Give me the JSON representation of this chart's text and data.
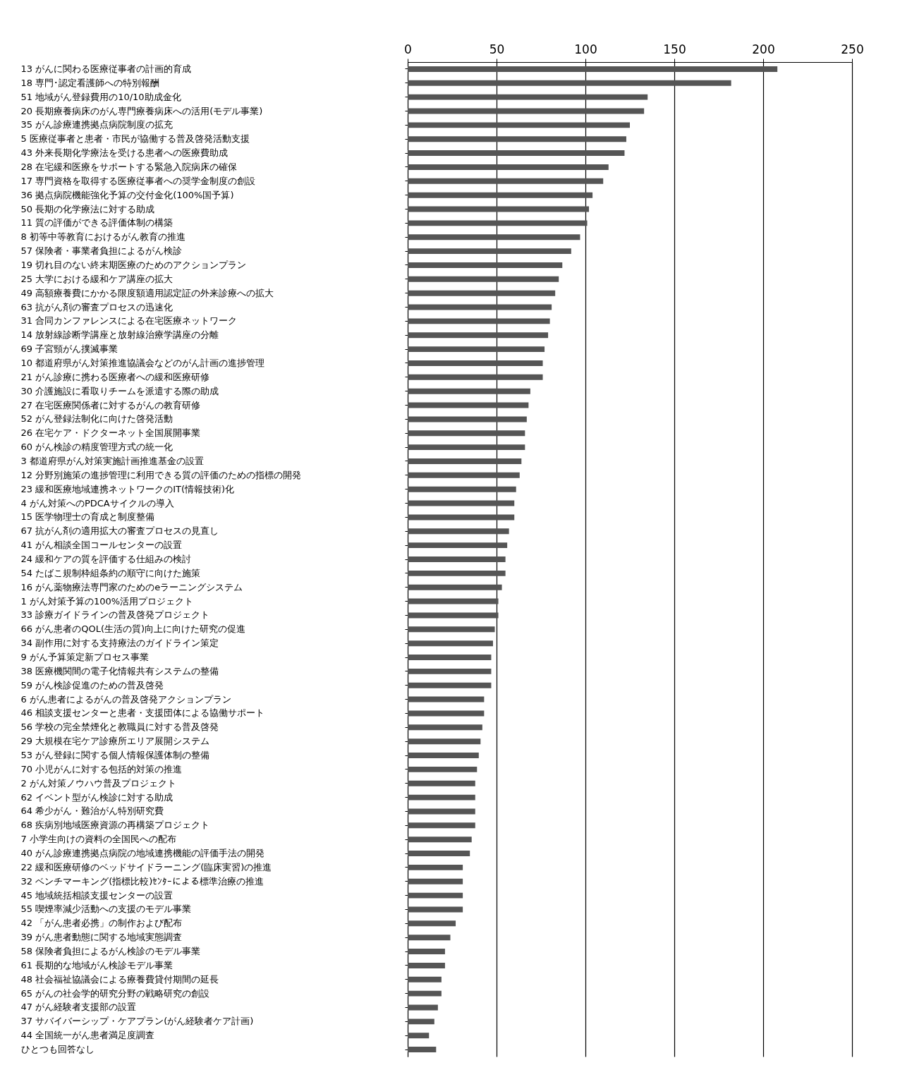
{
  "chart_data": {
    "type": "bar",
    "orientation": "horizontal",
    "grid": "x",
    "x2lim": [
      0,
      250
    ],
    "x2ticks": [
      0,
      50,
      100,
      150,
      200,
      250
    ],
    "categories": [
      "13  がんに関わる医療従事者の計画的育成",
      "18  専門･認定看護師への特別報酬",
      "51  地域がん登録費用の10/10助成金化",
      "20  長期療養病床のがん専門療養病床への活用(モデル事業)",
      "35  がん診療連携拠点病院制度の拡充",
      " 5  医療従事者と患者・市民が協働する普及啓発活動支援",
      "43  外来長期化学療法を受ける患者への医療費助成",
      "28  在宅緩和医療をサポートする緊急入院病床の確保",
      "17  専門資格を取得する医療従事者への奨学金制度の創設",
      "36  拠点病院機能強化予算の交付金化(100%国予算)",
      "50  長期の化学療法に対する助成",
      "11  質の評価ができる評価体制の構築",
      " 8  初等中等教育におけるがん教育の推進",
      "57  保険者・事業者負担によるがん検診",
      "19  切れ目のない終末期医療のためのアクションプラン",
      "25  大学における緩和ケア講座の拡大",
      "49  高額療養費にかかる限度額適用認定証の外来診療への拡大",
      "63  抗がん剤の審査プロセスの迅速化",
      "31  合同カンファレンスによる在宅医療ネットワーク",
      "14  放射線診断学講座と放射線治療学講座の分離",
      "69  子宮頸がん撲滅事業",
      "10  都道府県がん対策推進協議会などのがん計画の進捗管理",
      "21  がん診療に携わる医療者への緩和医療研修",
      "30  介護施設に看取りチームを派遣する際の助成",
      "27  在宅医療関係者に対するがんの教育研修",
      "52  がん登録法制化に向けた啓発活動",
      "26  在宅ケア・ドクターネット全国展開事業",
      "60  がん検診の精度管理方式の統一化",
      " 3  都道府県がん対策実施計画推進基金の設置",
      "12  分野別施策の進捗管理に利用できる質の評価のための指標の開発",
      "23  緩和医療地域連携ネットワークのIT(情報技術)化",
      " 4  がん対策へのPDCAサイクルの導入",
      "15  医学物理士の育成と制度整備",
      "67  抗がん剤の適用拡大の審査プロセスの見直し",
      "41  がん相談全国コールセンターの設置",
      "24  緩和ケアの質を評価する仕組みの検討",
      "54  たばこ規制枠組条約の順守に向けた施策",
      "16  がん薬物療法専門家のためのeラーニングシステム",
      " 1  がん対策予算の100%活用プロジェクト",
      "33  診療ガイドラインの普及啓発プロジェクト",
      "66  がん患者のQOL(生活の質)向上に向けた研究の促進",
      "34  副作用に対する支持療法のガイドライン策定",
      " 9  がん予算策定新プロセス事業",
      "38  医療機関間の電子化情報共有システムの整備",
      "59  がん検診促進のための普及啓発",
      " 6  がん患者によるがんの普及啓発アクションプラン",
      "46  相談支援センターと患者・支援団体による協働サポート",
      "56  学校の完全禁煙化と教職員に対する普及啓発",
      "29  大規模在宅ケア診療所エリア展開システム",
      "53  がん登録に関する個人情報保護体制の整備",
      "70  小児がんに対する包括的対策の推進",
      " 2  がん対策ノウハウ普及プロジェクト",
      "62  イベント型がん検診に対する助成",
      "64  希少がん・難治がん特別研究費",
      "68  疾病別地域医療資源の再構築プロジェクト",
      " 7  小学生向けの資料の全国民への配布",
      "40  がん診療連携拠点病院の地域連携機能の評価手法の開発",
      "22  緩和医療研修のベッドサイドラーニング(臨床実習)の推進",
      "32  ベンチマーキング(指標比較)ｾﾝﾀｰによる標準治療の推進",
      "45  地域統括相談支援センターの設置",
      "55  喫煙率減少活動への支援のモデル事業",
      "42  「がん患者必携」の制作および配布",
      "39  がん患者動態に関する地域実態調査",
      "58  保険者負担によるがん検診のモデル事業",
      "61  長期的な地域がん検診モデル事業",
      "48  社会福祉協議会による療養費貸付期間の延長",
      "65  がんの社会学的研究分野の戦略研究の創設",
      "47  がん経験者支援部の設置",
      "37  サバイバーシップ・ケアプラン(がん経験者ケア計画)",
      "44  全国統一がん患者満足度調査",
      "ひとつも回答なし"
    ],
    "series": [
      {
        "axis": "x2",
        "color": "#555555",
        "values": [
          208,
          182,
          135,
          133,
          125,
          123,
          122,
          113,
          110,
          104,
          102,
          101,
          97,
          92,
          87,
          85,
          83,
          81,
          80,
          79,
          77,
          76,
          76,
          69,
          68,
          67,
          66,
          66,
          64,
          63,
          61,
          60,
          60,
          57,
          56,
          55,
          55,
          53,
          51,
          51,
          49,
          48,
          47,
          47,
          47,
          43,
          43,
          42,
          41,
          40,
          39,
          38,
          38,
          38,
          38,
          36,
          35,
          31,
          31,
          31,
          31,
          27,
          24,
          21,
          21,
          19,
          19,
          17,
          15,
          12,
          16
        ]
      }
    ]
  }
}
